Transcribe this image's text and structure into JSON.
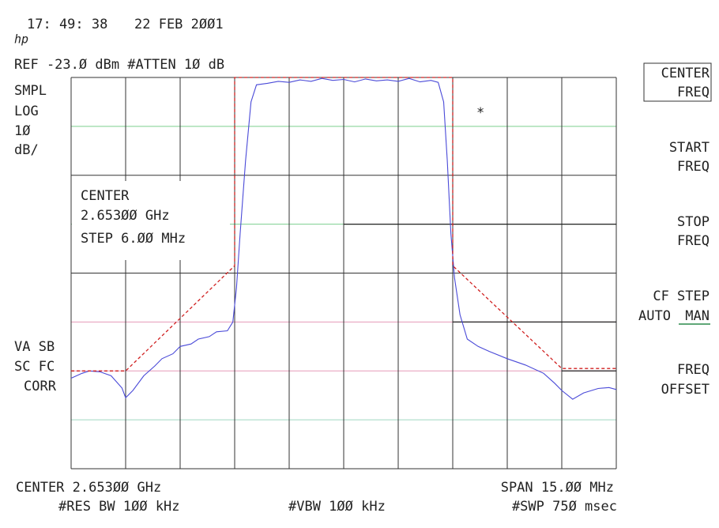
{
  "header": {
    "time": "17: 49: 38",
    "date": "22 FEB 2ØØ1",
    "logo": "hp",
    "ref": "REF -23.Ø dBm #ATTEN 1Ø dB"
  },
  "left_panel": {
    "detector": "SMPL",
    "scale": "LOG",
    "scale_value": "1Ø",
    "scale_unit": "dB/",
    "flags_1": "VA SB",
    "flags_2": "SC FC",
    "flags_3": "CORR"
  },
  "entry_box": {
    "label": "CENTER",
    "value": "2.653ØØ GHz",
    "step": "STEP 6.ØØ MHz"
  },
  "marker": "*",
  "footer": {
    "center": "CENTER 2.653ØØ GHz",
    "span": "SPAN 15.ØØ MHz",
    "rbw": "#RES BW 1ØØ kHz",
    "vbw": "#VBW 1ØØ kHz",
    "sweep": "#SWP 75Ø msec"
  },
  "softkeys": [
    {
      "line1": "CENTER",
      "line2": "FREQ"
    },
    {
      "line1": "START",
      "line2": "FREQ"
    },
    {
      "line1": "STOP",
      "line2": "FREQ"
    },
    {
      "line1": "CF STEP",
      "line2a": "AUTO",
      "line2b": "MAN"
    },
    {
      "line1": "FREQ",
      "line2": "OFFSET"
    }
  ],
  "chart_data": {
    "type": "line",
    "xlim": [
      2645.5,
      2660.5
    ],
    "ylim": [
      -103,
      -23
    ],
    "series": [
      {
        "color": "#4a4ad8",
        "dashed": false,
        "x": [
          2645.5,
          2645.8,
          2646.0,
          2646.3,
          2646.6,
          2646.9,
          2647.0,
          2647.2,
          2647.5,
          2647.8,
          2648.0,
          2648.3,
          2648.5,
          2648.8,
          2649.0,
          2649.3,
          2649.5,
          2649.8,
          2649.95,
          2650.05,
          2650.15,
          2650.3,
          2650.45,
          2650.6,
          2650.9,
          2651.2,
          2651.5,
          2651.8,
          2652.1,
          2652.4,
          2652.7,
          2653.0,
          2653.3,
          2653.6,
          2653.9,
          2654.2,
          2654.5,
          2654.8,
          2655.1,
          2655.4,
          2655.6,
          2655.75,
          2655.85,
          2655.95,
          2656.05,
          2656.2,
          2656.4,
          2656.7,
          2657.0,
          2657.5,
          2658.0,
          2658.5,
          2658.8,
          2659.0,
          2659.3,
          2659.6,
          2660.0,
          2660.3,
          2660.5
        ],
        "values": [
          -84.5,
          -83.5,
          -83.0,
          -83.2,
          -84.0,
          -86.5,
          -88.5,
          -87.0,
          -84.0,
          -82.0,
          -80.5,
          -79.5,
          -78.0,
          -77.5,
          -76.5,
          -76.0,
          -75.0,
          -74.8,
          -73.0,
          -66.0,
          -55.0,
          -40.0,
          -28.0,
          -24.5,
          -24.2,
          -23.8,
          -24.0,
          -23.5,
          -23.8,
          -23.2,
          -23.6,
          -23.4,
          -23.9,
          -23.3,
          -23.7,
          -23.5,
          -23.8,
          -23.2,
          -23.9,
          -23.6,
          -24.0,
          -28.0,
          -40.0,
          -55.0,
          -64.0,
          -71.5,
          -76.5,
          -78.0,
          -79.0,
          -80.5,
          -81.8,
          -83.5,
          -85.5,
          -87.0,
          -88.8,
          -87.5,
          -86.6,
          -86.4,
          -86.8
        ]
      },
      {
        "color": "#d02020",
        "dashed": true,
        "x": [
          2645.5,
          2647.0,
          2650.0,
          2650.0,
          2656.0,
          2656.0,
          2659.0,
          2660.5
        ],
        "values": [
          -83.0,
          -83.0,
          -61.5,
          -23.0,
          -23.0,
          -61.5,
          -82.5,
          -82.5
        ]
      }
    ]
  }
}
